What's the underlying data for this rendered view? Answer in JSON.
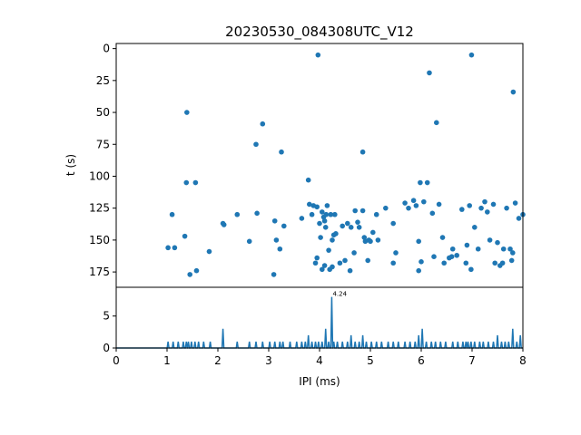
{
  "chart_data": [
    {
      "type": "scatter",
      "title": "20230530_084308UTC_V12",
      "xlabel": "",
      "ylabel": "t (s)",
      "xlim": [
        0,
        8
      ],
      "ylim": [
        187,
        -4
      ],
      "y_inverted": true,
      "yticks": [
        "0",
        "25",
        "50",
        "75",
        "100",
        "125",
        "150",
        "175"
      ],
      "color": "#1f77b4",
      "series": [
        {
          "x": [
            3.97,
            6.99,
            6.16,
            7.81,
            1.39,
            2.88,
            6.3,
            2.75,
            3.25,
            4.85,
            3.78,
            1.38,
            1.56,
            5.98,
            1.15,
            1.02,
            1.1,
            1.35,
            1.83,
            2.12,
            2.1,
            2.38,
            2.62,
            2.77,
            3.12,
            3.15,
            3.22,
            3.3,
            3.65,
            3.8,
            3.88,
            3.95,
            4.0,
            4.05,
            4.08,
            4.1,
            4.12,
            4.15,
            4.22,
            4.25,
            4.28,
            4.3,
            4.45,
            4.55,
            4.62,
            4.7,
            4.78,
            4.85,
            4.9,
            4.97,
            5.0,
            5.12,
            5.3,
            5.45,
            5.68,
            5.75,
            5.85,
            5.9,
            5.95,
            6.05,
            6.12,
            6.22,
            6.35,
            6.42,
            6.62,
            6.8,
            6.88,
            6.95,
            7.05,
            7.12,
            7.18,
            7.35,
            7.42,
            7.5,
            7.62,
            7.68,
            7.75,
            7.85,
            7.92,
            8.0,
            3.92,
            4.02,
            4.18,
            4.32,
            4.5,
            4.68,
            4.88,
            5.05,
            5.15,
            5.5,
            6.0,
            6.45,
            6.6,
            6.9,
            7.25,
            7.55,
            7.8,
            4.13,
            4.2,
            3.95,
            4.05,
            1.45,
            1.58,
            3.1,
            4.6,
            4.95,
            5.95,
            6.7,
            6.98,
            7.45,
            7.6,
            7.78,
            4.1,
            4.25,
            4.4,
            5.45,
            6.25,
            3.85,
            6.55,
            7.3,
            4.75
          ],
          "y": [
            5,
            5,
            19,
            34,
            50,
            59,
            58,
            75,
            81,
            81,
            103,
            105,
            105,
            105,
            156,
            156,
            130,
            147,
            159,
            138,
            137,
            130,
            151,
            129,
            135,
            150,
            157,
            139,
            133,
            122,
            123,
            124,
            137,
            128,
            132,
            135,
            140,
            123,
            130,
            150,
            146,
            130,
            139,
            137,
            140,
            127,
            140,
            127,
            151,
            150,
            151,
            130,
            125,
            137,
            121,
            125,
            119,
            123,
            151,
            120,
            105,
            129,
            122,
            148,
            157,
            126,
            168,
            123,
            140,
            157,
            125,
            150,
            122,
            152,
            157,
            125,
            157,
            121,
            133,
            130,
            168,
            148,
            158,
            145,
            166,
            160,
            148,
            144,
            150,
            160,
            167,
            168,
            163,
            154,
            120,
            170,
            160,
            130,
            173,
            164,
            173,
            177,
            174,
            177,
            174,
            166,
            174,
            162,
            173,
            168,
            168,
            166,
            170,
            171,
            168,
            168,
            163,
            130,
            164,
            128,
            136
          ]
        }
      ]
    },
    {
      "type": "line",
      "title": "",
      "xlabel": "IPI (ms)",
      "ylabel": "",
      "xlim": [
        0,
        8
      ],
      "ylim": [
        0,
        9.5
      ],
      "xticks": [
        "0",
        "1",
        "2",
        "3",
        "4",
        "5",
        "6",
        "7",
        "8"
      ],
      "yticks": [
        "0",
        "5"
      ],
      "color": "#1f77b4",
      "peak_annotation": {
        "x": 4.24,
        "y": 8,
        "label": "4.24"
      },
      "series": [
        {
          "spikes_x": [
            1.02,
            1.12,
            1.22,
            1.32,
            1.38,
            1.42,
            1.48,
            1.55,
            1.62,
            1.72,
            1.85,
            2.1,
            2.38,
            2.62,
            2.75,
            2.88,
            3.02,
            3.12,
            3.22,
            3.28,
            3.42,
            3.55,
            3.65,
            3.72,
            3.78,
            3.85,
            3.92,
            3.98,
            4.05,
            4.12,
            4.18,
            4.24,
            4.28,
            4.35,
            4.45,
            4.55,
            4.62,
            4.7,
            4.78,
            4.85,
            4.92,
            5.02,
            5.12,
            5.22,
            5.35,
            5.45,
            5.55,
            5.68,
            5.78,
            5.88,
            5.95,
            6.02,
            6.1,
            6.2,
            6.28,
            6.38,
            6.48,
            6.62,
            6.72,
            6.82,
            6.88,
            6.92,
            6.98,
            7.05,
            7.15,
            7.22,
            7.32,
            7.42,
            7.5,
            7.58,
            7.65,
            7.72,
            7.8,
            7.88,
            7.95
          ],
          "spikes_y": [
            1,
            1,
            1,
            1,
            1,
            1,
            1,
            1,
            1,
            1,
            1,
            3,
            1,
            1,
            1,
            1,
            1,
            1,
            1,
            1,
            1,
            1,
            1,
            1,
            2,
            1,
            1,
            1,
            1,
            3,
            1,
            8,
            1,
            1,
            1,
            1,
            2,
            1,
            1,
            2,
            1,
            1,
            1,
            1,
            1,
            1,
            1,
            1,
            1,
            1,
            2,
            3,
            1,
            1,
            1,
            1,
            1,
            1,
            1,
            1,
            1,
            1,
            1,
            1,
            1,
            1,
            1,
            1,
            2,
            1,
            1,
            1,
            3,
            1,
            2
          ]
        }
      ]
    }
  ]
}
